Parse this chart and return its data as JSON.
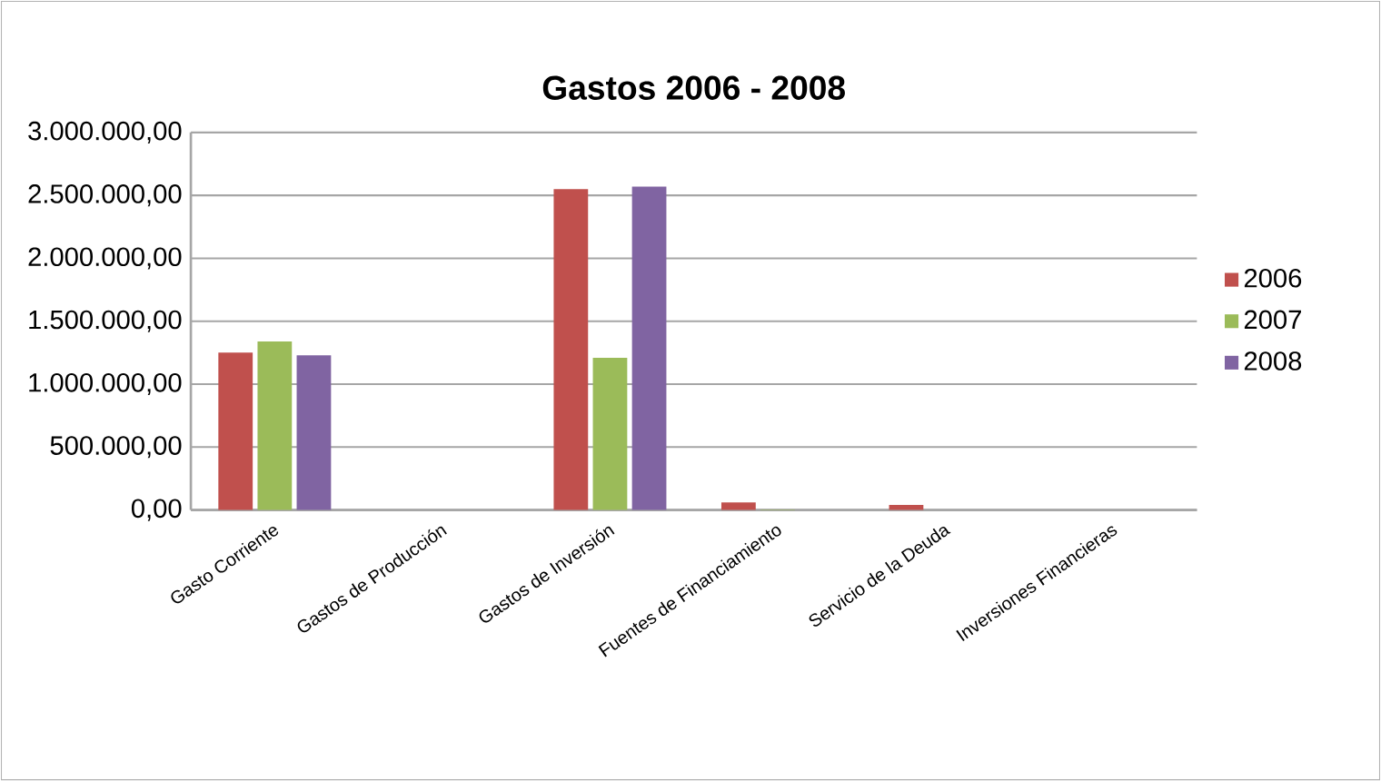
{
  "chart_data": {
    "type": "bar",
    "title": "Gastos 2006 - 2008",
    "categories": [
      "Gasto Corriente",
      "Gastos de Producción",
      "Gastos de Inversión",
      "Fuentes de Financiamiento",
      "Servicio de la Deuda",
      "Inversiones Financieras"
    ],
    "series": [
      {
        "name": "2006",
        "color": "#c0504d",
        "values": [
          1250000,
          0,
          2550000,
          60000,
          40000,
          0
        ]
      },
      {
        "name": "2007",
        "color": "#9bbb59",
        "values": [
          1340000,
          0,
          1210000,
          5000,
          0,
          0
        ]
      },
      {
        "name": "2008",
        "color": "#8064a2",
        "values": [
          1230000,
          0,
          2570000,
          0,
          0,
          0
        ]
      }
    ],
    "ylim": [
      0,
      3000000
    ],
    "yticks": [
      {
        "value": 0,
        "label": "0,00"
      },
      {
        "value": 500000,
        "label": "500.000,00"
      },
      {
        "value": 1000000,
        "label": "1.000.000,00"
      },
      {
        "value": 1500000,
        "label": "1.500.000,00"
      },
      {
        "value": 2000000,
        "label": "2.000.000,00"
      },
      {
        "value": 2500000,
        "label": "2.500.000,00"
      },
      {
        "value": 3000000,
        "label": "3.000.000,00"
      }
    ],
    "grid": "y",
    "legend": "right"
  }
}
